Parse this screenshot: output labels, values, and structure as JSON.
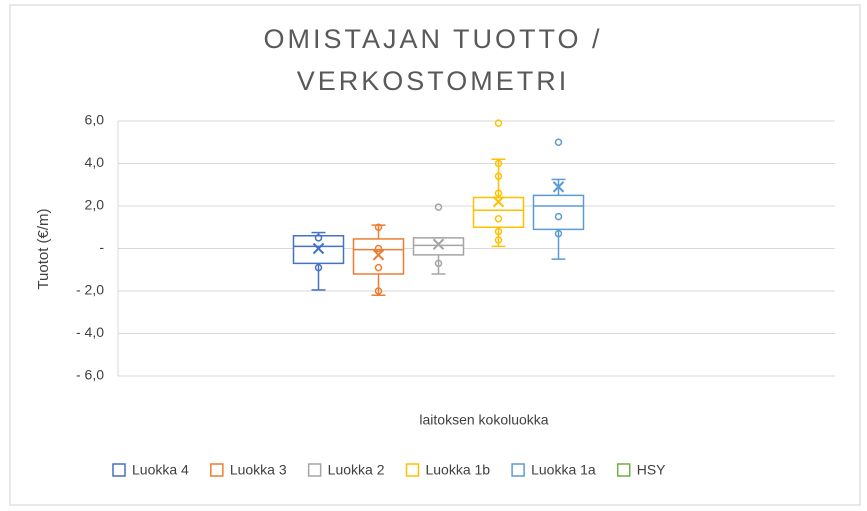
{
  "chart_data": {
    "type": "box",
    "title": "OMISTAJAN TUOTTO / VERKOSTOMETRI",
    "y_label": "Tuotot (€/m)",
    "x_label": "laitoksen kokoluokka",
    "ylim": [
      -6,
      6
    ],
    "yticks": [
      {
        "value": 6,
        "label": "6,0"
      },
      {
        "value": 4,
        "label": "4,0"
      },
      {
        "value": 2,
        "label": "2,0"
      },
      {
        "value": 0,
        "label": "-"
      },
      {
        "value": -2,
        "label": "- 2,0"
      },
      {
        "value": -4,
        "label": "- 4,0"
      },
      {
        "value": -6,
        "label": "- 6,0"
      }
    ],
    "grid": true,
    "legend": "bottom",
    "series": [
      {
        "name": "Luokka 4",
        "color": "#4472c4",
        "min": -1.95,
        "q1": -0.7,
        "median": 0.1,
        "q3": 0.6,
        "max": 0.75,
        "mean": 0.0,
        "points": [
          0.5,
          -0.9
        ]
      },
      {
        "name": "Luokka 3",
        "color": "#ed7d31",
        "min": -2.2,
        "q1": -1.2,
        "median": -0.05,
        "q3": 0.45,
        "max": 1.1,
        "mean": -0.3,
        "points": [
          1.0,
          0.0,
          -0.9,
          -2.0
        ]
      },
      {
        "name": "Luokka 2",
        "color": "#a5a5a5",
        "min": -1.2,
        "q1": -0.3,
        "median": 0.15,
        "q3": 0.5,
        "max": 0.5,
        "mean": 0.2,
        "points": [
          1.95,
          -0.7
        ]
      },
      {
        "name": "Luokka 1b",
        "color": "#ffc000",
        "min": 0.1,
        "q1": 1.0,
        "median": 1.8,
        "q3": 2.4,
        "max": 4.2,
        "mean": 2.2,
        "points": [
          5.9,
          4.0,
          3.4,
          2.6,
          1.4,
          0.8,
          0.4
        ]
      },
      {
        "name": "Luokka 1a",
        "color": "#5b9bd5",
        "min": -0.5,
        "q1": 0.9,
        "median": 2.0,
        "q3": 2.5,
        "max": 3.25,
        "mean": 2.9,
        "points": [
          5.0,
          1.5,
          0.7
        ]
      },
      {
        "name": "HSY",
        "color": "#70ad47"
      }
    ]
  }
}
